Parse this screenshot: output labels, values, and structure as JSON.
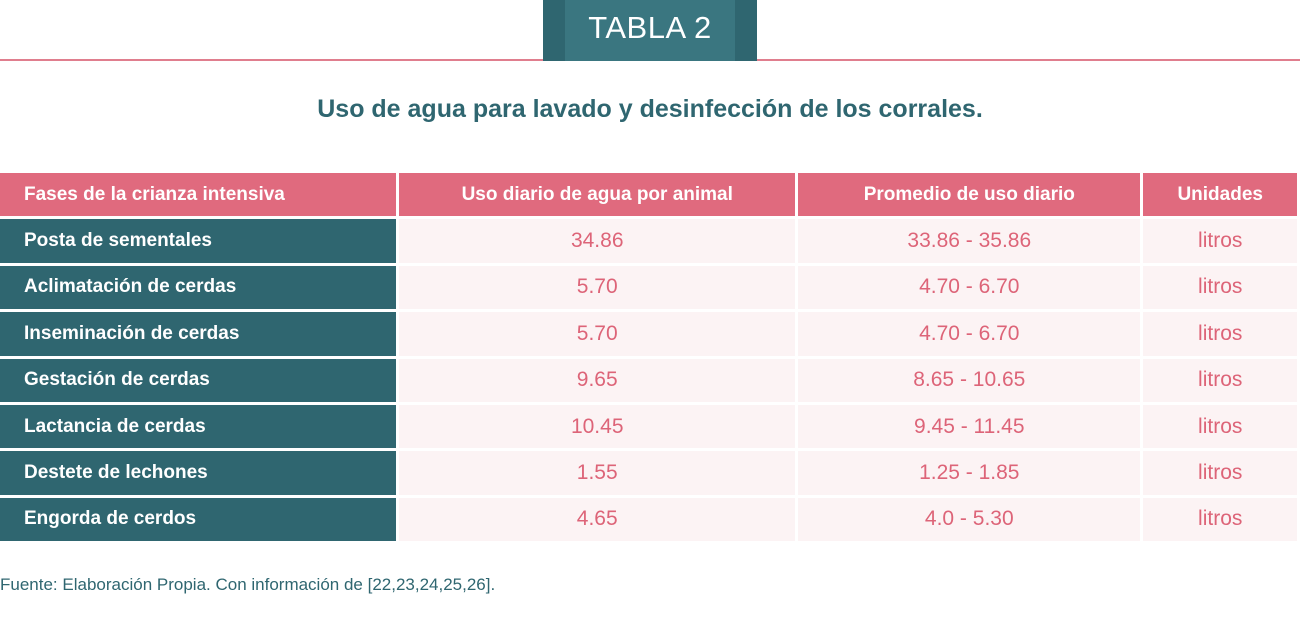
{
  "badge": {
    "label": "TABLA 2"
  },
  "title": "Uso de agua para lavado y desinfección de los corrales.",
  "table": {
    "headers": [
      "Fases de la crianza intensiva",
      "Uso diario de agua por animal",
      "Promedio de uso diario",
      "Unidades"
    ],
    "rows": [
      {
        "phase": "Posta de sementales",
        "daily_use": "34.86",
        "range": "33.86 - 35.86",
        "unit": "litros"
      },
      {
        "phase": "Aclimatación de cerdas",
        "daily_use": "5.70",
        "range": "4.70 - 6.70",
        "unit": "litros"
      },
      {
        "phase": "Inseminación de cerdas",
        "daily_use": "5.70",
        "range": "4.70 - 6.70",
        "unit": "litros"
      },
      {
        "phase": "Gestación de cerdas",
        "daily_use": "9.65",
        "range": "8.65 - 10.65",
        "unit": "litros"
      },
      {
        "phase": "Lactancia de cerdas",
        "daily_use": "10.45",
        "range": "9.45 - 11.45",
        "unit": "litros"
      },
      {
        "phase": "Destete de lechones",
        "daily_use": "1.55",
        "range": "1.25 - 1.85",
        "unit": "litros"
      },
      {
        "phase": "Engorda de cerdos",
        "daily_use": "4.65",
        "range": "4.0 - 5.30",
        "unit": "litros"
      }
    ]
  },
  "source": "Fuente: Elaboración Propia. Con información de [22,23,24,25,26].",
  "colors": {
    "teal": "#2f6670",
    "pink": "#e06a7e",
    "value_text": "#dd6478",
    "cell_bg": "#fcf3f4"
  }
}
